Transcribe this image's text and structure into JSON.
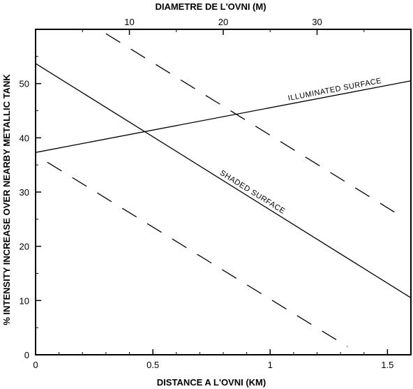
{
  "chart_data": {
    "type": "line",
    "title": "",
    "xlabel": "DISTANCE A L'OVNI (KM)",
    "ylabel": "% INTENSITY INCREASE OVER NEARBY METALLIC TANK",
    "xlabel_top": "DIAMETRE DE L'OVNI (M)",
    "xlim": [
      0,
      1.6
    ],
    "ylim": [
      0,
      60
    ],
    "top_xlim": [
      0,
      40
    ],
    "x_ticks": [
      {
        "value": 0,
        "label": "0"
      },
      {
        "value": 0.5,
        "label": "0.5"
      },
      {
        "value": 1,
        "label": "1"
      },
      {
        "value": 1.5,
        "label": "1.5"
      }
    ],
    "y_ticks": [
      {
        "value": 0,
        "label": "0"
      },
      {
        "value": 10,
        "label": "10"
      },
      {
        "value": 20,
        "label": "20"
      },
      {
        "value": 30,
        "label": "30"
      },
      {
        "value": 40,
        "label": "40"
      },
      {
        "value": 50,
        "label": "50"
      }
    ],
    "top_x_ticks": [
      {
        "value": 10,
        "label": "10"
      },
      {
        "value": 20,
        "label": "20"
      },
      {
        "value": 30,
        "label": "30"
      }
    ],
    "grid": false,
    "series": [
      {
        "name": "ILLUMINATED SURFACE",
        "style": "solid",
        "x": [
          0,
          1.6
        ],
        "y": [
          37.3,
          50.5
        ]
      },
      {
        "name": "SHADED SURFACE",
        "style": "solid",
        "x": [
          0,
          1.6
        ],
        "y": [
          53.7,
          10.5
        ]
      },
      {
        "name": "",
        "style": "dashed",
        "x": [
          0.3,
          1.56
        ],
        "y": [
          59.2,
          25.5
        ]
      },
      {
        "name": "",
        "style": "dashed",
        "x": [
          0.05,
          1.33
        ],
        "y": [
          35.5,
          1.5
        ]
      }
    ]
  }
}
